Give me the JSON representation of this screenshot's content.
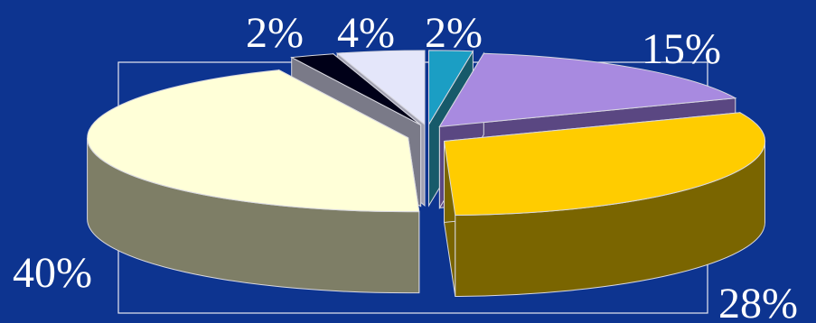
{
  "chart_data": {
    "type": "pie",
    "style": "3d-exploded",
    "values": [
      40,
      2,
      4,
      2,
      15,
      28
    ],
    "labels": [
      "40%",
      "2%",
      "4%",
      "2%",
      "15%",
      "28%"
    ],
    "colors": {
      "top": [
        "#ffffd8",
        "#000018",
        "#e4e6fa",
        "#1b9ec4",
        "#a88ae0",
        "#ffcc00"
      ],
      "side": [
        "#7e7e66",
        "#7a7a88",
        "#a2a2b2",
        "#175a6a",
        "#5a4782",
        "#7a6500"
      ]
    },
    "background": "#0d3490",
    "legend": "none"
  }
}
